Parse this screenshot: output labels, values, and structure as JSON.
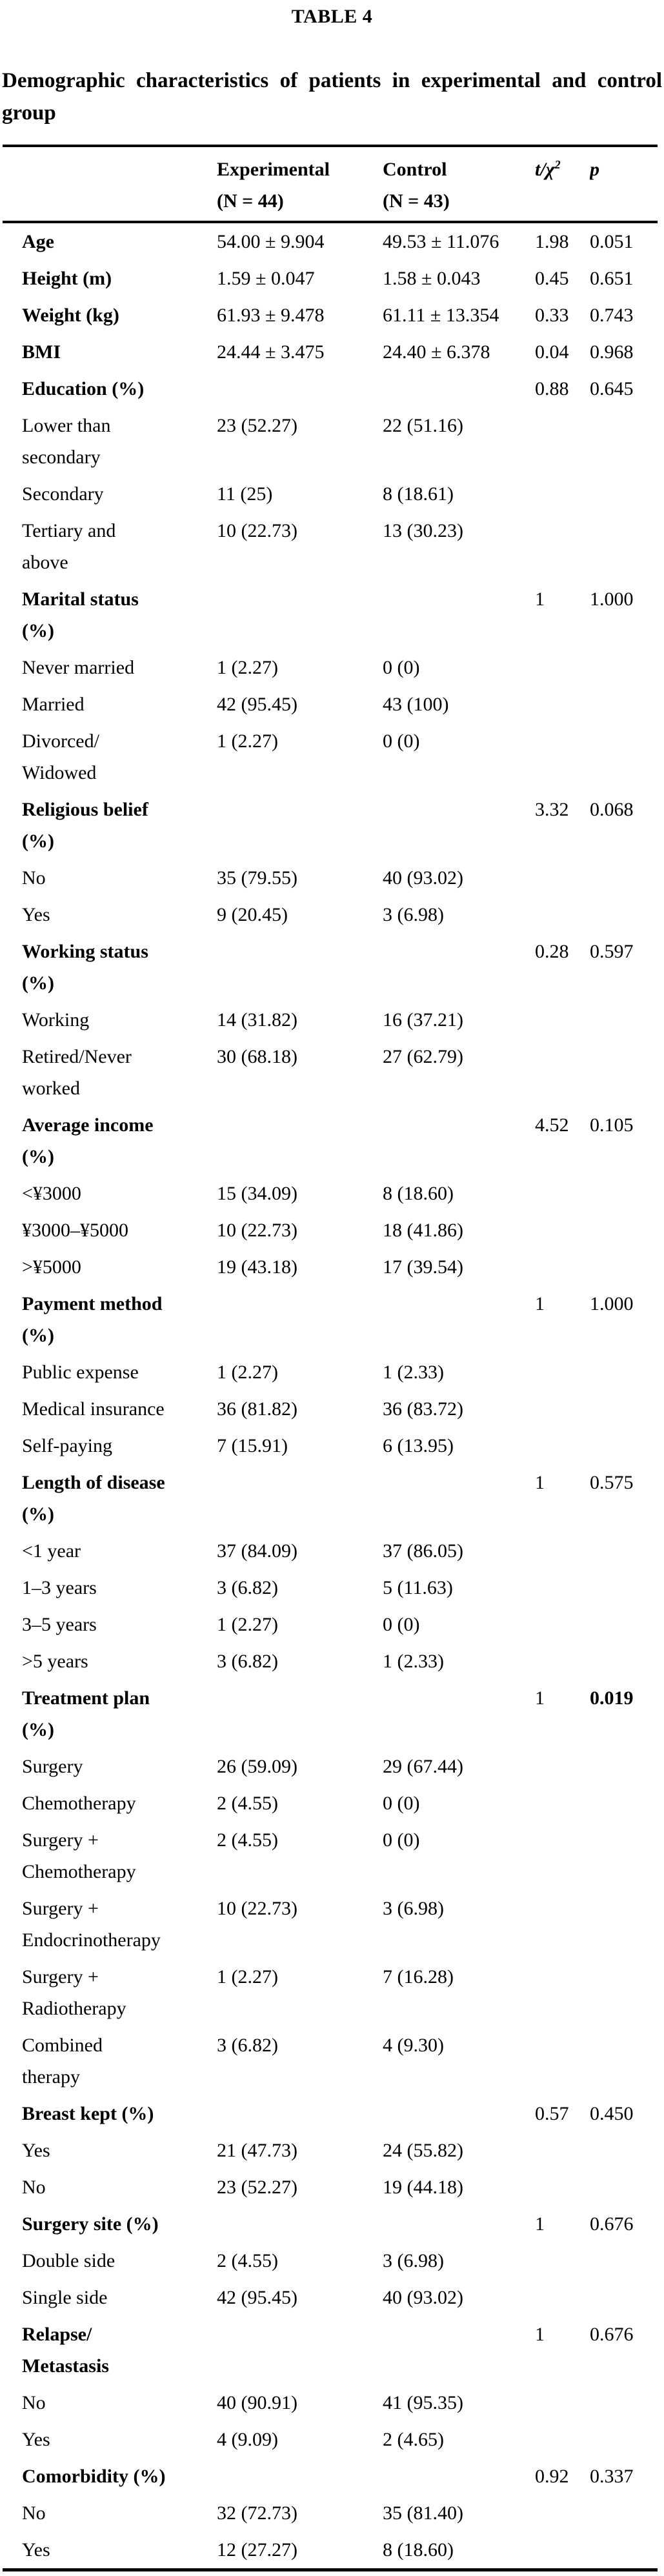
{
  "table_label": "TABLE 4",
  "title": "Demographic characteristics of patients in experimental and control group",
  "header": {
    "experimental": "Experimental\n(N = 44)",
    "control": "Control\n(N = 43)",
    "t_chi": "t/χ",
    "t_chi_sup": "2",
    "p": "p"
  },
  "table": {
    "rows": [
      {
        "label": "Age",
        "exp": "54.00 ± 9.904",
        "ctrl": "49.53 ± 11.076",
        "t": "1.98",
        "p": "0.051",
        "head": true
      },
      {
        "label": "Height (m)",
        "exp": "1.59 ± 0.047",
        "ctrl": "1.58 ± 0.043",
        "t": "0.45",
        "p": "0.651",
        "head": true
      },
      {
        "label": "Weight (kg)",
        "exp": "61.93 ± 9.478",
        "ctrl": "61.11 ± 13.354",
        "t": "0.33",
        "p": "0.743",
        "head": true
      },
      {
        "label": "BMI",
        "exp": "24.44 ± 3.475",
        "ctrl": "24.40 ± 6.378",
        "t": "0.04",
        "p": "0.968",
        "head": true
      },
      {
        "label": "Education (%)",
        "t": "0.88",
        "p": "0.645",
        "head": true
      },
      {
        "label": "Lower than\nsecondary",
        "exp": "23 (52.27)",
        "ctrl": "22 (51.16)"
      },
      {
        "label": "Secondary",
        "exp": "11 (25)",
        "ctrl": "8 (18.61)"
      },
      {
        "label": "Tertiary and\nabove",
        "exp": "10 (22.73)",
        "ctrl": "13 (30.23)"
      },
      {
        "label": "Marital status\n(%)",
        "t": "1",
        "p": "1.000",
        "head": true
      },
      {
        "label": "Never married",
        "exp": "1 (2.27)",
        "ctrl": "0 (0)"
      },
      {
        "label": "Married",
        "exp": "42 (95.45)",
        "ctrl": "43 (100)"
      },
      {
        "label": "Divorced/\nWidowed",
        "exp": "1 (2.27)",
        "ctrl": "0 (0)"
      },
      {
        "label": "Religious belief\n(%)",
        "t": "3.32",
        "p": "0.068",
        "head": true
      },
      {
        "label": "No",
        "exp": "35 (79.55)",
        "ctrl": "40 (93.02)"
      },
      {
        "label": "Yes",
        "exp": "9 (20.45)",
        "ctrl": "3 (6.98)"
      },
      {
        "label": "Working status\n(%)",
        "t": "0.28",
        "p": "0.597",
        "head": true
      },
      {
        "label": "Working",
        "exp": "14 (31.82)",
        "ctrl": "16 (37.21)"
      },
      {
        "label": "Retired/Never\nworked",
        "exp": "30 (68.18)",
        "ctrl": "27 (62.79)"
      },
      {
        "label": "Average income\n(%)",
        "t": "4.52",
        "p": "0.105",
        "head": true
      },
      {
        "label": "<¥3000",
        "exp": "15 (34.09)",
        "ctrl": "8 (18.60)"
      },
      {
        "label": "¥3000–¥5000",
        "exp": "10 (22.73)",
        "ctrl": "18 (41.86)"
      },
      {
        "label": ">¥5000",
        "exp": "19 (43.18)",
        "ctrl": "17 (39.54)"
      },
      {
        "label": "Payment method\n(%)",
        "t": "1",
        "p": "1.000",
        "head": true
      },
      {
        "label": "Public expense",
        "exp": "1 (2.27)",
        "ctrl": "1 (2.33)"
      },
      {
        "label": "Medical insurance",
        "exp": "36 (81.82)",
        "ctrl": "36 (83.72)"
      },
      {
        "label": "Self-paying",
        "exp": "7 (15.91)",
        "ctrl": "6 (13.95)"
      },
      {
        "label": "Length of disease\n(%)",
        "t": "1",
        "p": "0.575",
        "head": true
      },
      {
        "label": "<1 year",
        "exp": "37 (84.09)",
        "ctrl": "37 (86.05)"
      },
      {
        "label": "1–3 years",
        "exp": "3 (6.82)",
        "ctrl": "5 (11.63)"
      },
      {
        "label": "3–5 years",
        "exp": "1 (2.27)",
        "ctrl": "0 (0)"
      },
      {
        "label": ">5 years",
        "exp": "3 (6.82)",
        "ctrl": "1 (2.33)"
      },
      {
        "label": "Treatment plan\n(%)",
        "t": "1",
        "p": "0.019",
        "head": true,
        "p_bold": true
      },
      {
        "label": "Surgery",
        "exp": "26 (59.09)",
        "ctrl": "29 (67.44)"
      },
      {
        "label": "Chemotherapy",
        "exp": "2 (4.55)",
        "ctrl": "0 (0)"
      },
      {
        "label": "Surgery +\nChemotherapy",
        "exp": "2 (4.55)",
        "ctrl": "0 (0)"
      },
      {
        "label": "Surgery +\nEndocrinotherapy",
        "exp": "10 (22.73)",
        "ctrl": "3 (6.98)"
      },
      {
        "label": "Surgery +\nRadiotherapy",
        "exp": "1 (2.27)",
        "ctrl": "7 (16.28)"
      },
      {
        "label": "Combined\ntherapy",
        "exp": "3 (6.82)",
        "ctrl": "4 (9.30)"
      },
      {
        "label": "Breast kept (%)",
        "t": "0.57",
        "p": "0.450",
        "head": true
      },
      {
        "label": "Yes",
        "exp": "21 (47.73)",
        "ctrl": "24 (55.82)"
      },
      {
        "label": "No",
        "exp": "23 (52.27)",
        "ctrl": "19 (44.18)"
      },
      {
        "label": "Surgery site (%)",
        "t": "1",
        "p": "0.676",
        "head": true
      },
      {
        "label": "Double side",
        "exp": "2 (4.55)",
        "ctrl": "3 (6.98)"
      },
      {
        "label": "Single side",
        "exp": "42 (95.45)",
        "ctrl": "40 (93.02)"
      },
      {
        "label": "Relapse/\nMetastasis",
        "t": "1",
        "p": "0.676",
        "head": true
      },
      {
        "label": "No",
        "exp": "40 (90.91)",
        "ctrl": "41 (95.35)"
      },
      {
        "label": "Yes",
        "exp": "4 (9.09)",
        "ctrl": "2 (4.65)"
      },
      {
        "label": "Comorbidity (%)",
        "t": "0.92",
        "p": "0.337",
        "head": true
      },
      {
        "label": "No",
        "exp": "32 (72.73)",
        "ctrl": "35 (81.40)"
      },
      {
        "label": "Yes",
        "exp": "12 (27.27)",
        "ctrl": "8 (18.60)"
      }
    ]
  }
}
